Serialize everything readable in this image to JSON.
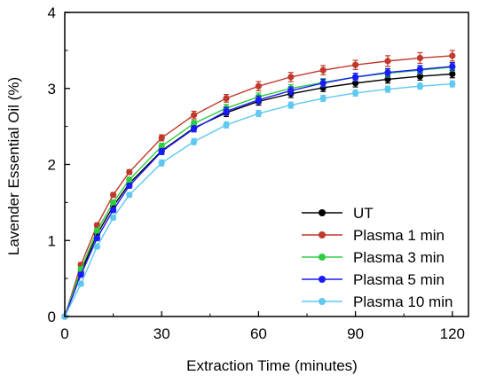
{
  "chart_data": {
    "type": "line",
    "xlabel": "Extraction Time (minutes)",
    "ylabel": "Lavender Essential Oil (%)",
    "xlim": [
      0,
      125
    ],
    "ylim": [
      0,
      4
    ],
    "xticks": [
      0,
      30,
      60,
      90,
      120
    ],
    "yticks": [
      0,
      1,
      2,
      3,
      4
    ],
    "xtick_labels": [
      "0",
      "30",
      "60",
      "90",
      "120"
    ],
    "ytick_labels": [
      "0",
      "1",
      "2",
      "3",
      "4"
    ],
    "legend_position": "bottom-right",
    "grid": false,
    "x": [
      0,
      5,
      10,
      15,
      20,
      30,
      40,
      50,
      60,
      70,
      80,
      90,
      100,
      110,
      120
    ],
    "series": [
      {
        "name": "UT",
        "color": "#000000",
        "values": [
          0,
          0.58,
          1.08,
          1.45,
          1.75,
          2.18,
          2.48,
          2.68,
          2.83,
          2.93,
          3.01,
          3.07,
          3.12,
          3.16,
          3.19
        ],
        "errors": [
          0,
          0.03,
          0.03,
          0.03,
          0.03,
          0.04,
          0.05,
          0.05,
          0.05,
          0.05,
          0.05,
          0.05,
          0.05,
          0.05,
          0.05
        ]
      },
      {
        "name": "Plasma 1 min",
        "color": "#c0392b",
        "values": [
          0,
          0.68,
          1.2,
          1.6,
          1.9,
          2.35,
          2.65,
          2.87,
          3.03,
          3.15,
          3.24,
          3.31,
          3.36,
          3.4,
          3.43
        ],
        "errors": [
          0,
          0.03,
          0.03,
          0.03,
          0.03,
          0.04,
          0.05,
          0.05,
          0.06,
          0.06,
          0.06,
          0.06,
          0.07,
          0.07,
          0.07
        ]
      },
      {
        "name": "Plasma 3 min",
        "color": "#2ecc40",
        "values": [
          0,
          0.62,
          1.13,
          1.5,
          1.8,
          2.24,
          2.54,
          2.74,
          2.89,
          3.0,
          3.08,
          3.15,
          3.2,
          3.24,
          3.28
        ],
        "errors": [
          0,
          0.03,
          0.03,
          0.03,
          0.03,
          0.04,
          0.04,
          0.05,
          0.05,
          0.05,
          0.05,
          0.05,
          0.05,
          0.05,
          0.05
        ]
      },
      {
        "name": "Plasma 5 min",
        "color": "#1a1aff",
        "values": [
          0,
          0.55,
          1.03,
          1.4,
          1.72,
          2.17,
          2.47,
          2.7,
          2.85,
          2.97,
          3.07,
          3.15,
          3.21,
          3.25,
          3.29
        ],
        "errors": [
          0,
          0.03,
          0.03,
          0.03,
          0.03,
          0.04,
          0.04,
          0.05,
          0.05,
          0.05,
          0.05,
          0.05,
          0.05,
          0.05,
          0.05
        ]
      },
      {
        "name": "Plasma 10 min",
        "color": "#5ec8f0",
        "values": [
          0,
          0.43,
          0.92,
          1.3,
          1.6,
          2.02,
          2.3,
          2.52,
          2.67,
          2.78,
          2.87,
          2.94,
          2.99,
          3.03,
          3.06
        ],
        "errors": [
          0,
          0.03,
          0.03,
          0.03,
          0.03,
          0.04,
          0.04,
          0.04,
          0.04,
          0.04,
          0.04,
          0.04,
          0.04,
          0.04,
          0.04
        ]
      }
    ]
  }
}
